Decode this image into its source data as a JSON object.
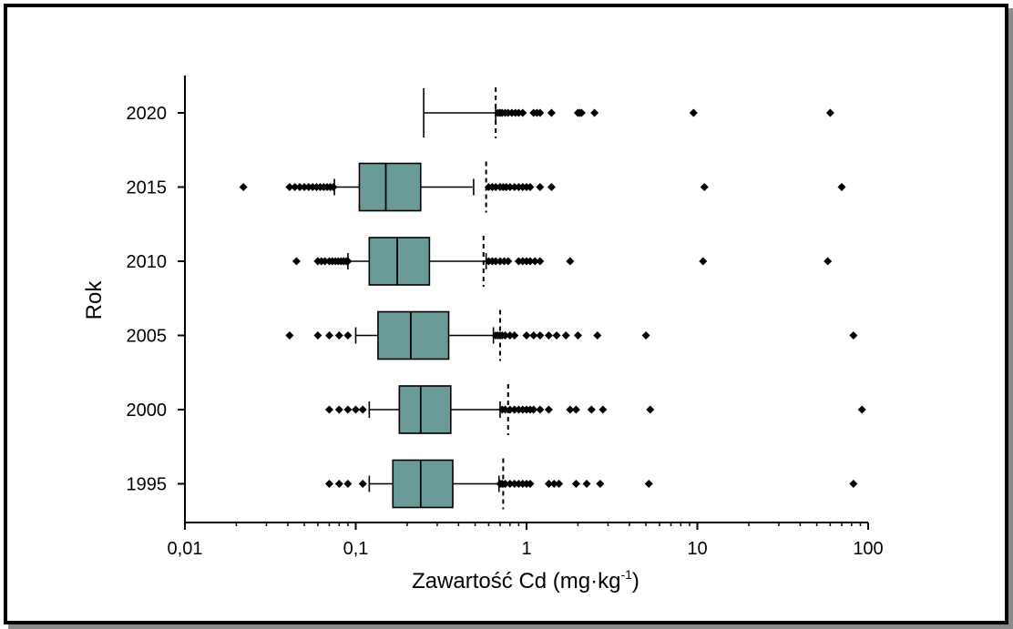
{
  "chart_data": {
    "type": "box",
    "orientation": "horizontal",
    "title": "",
    "xlabel_main": "Zawartość Cd (mg·kg",
    "xlabel_sup": "-1",
    "xlabel_end": ")",
    "ylabel": "Rok",
    "xscale": "log",
    "xlim": [
      0.01,
      100
    ],
    "x_ticks": [
      0.01,
      0.1,
      1,
      10,
      100
    ],
    "x_tick_labels": [
      "0,01",
      "0,1",
      "1",
      "10",
      "100"
    ],
    "grid": false,
    "legend": "none",
    "box_color": "#6a9b99",
    "categories": [
      "2020",
      "2015",
      "2010",
      "2005",
      "2000",
      "1995"
    ],
    "boxes": [
      {
        "year": "2020",
        "whisker_low": 0.25,
        "q1": null,
        "median": null,
        "q3": null,
        "whisker_high": 0.66,
        "p95": 0.66,
        "outliers": [
          0.68,
          0.7,
          0.72,
          0.75,
          0.78,
          0.82,
          0.86,
          0.9,
          0.95,
          1.1,
          1.15,
          1.2,
          1.4,
          2.0,
          2.05,
          2.1,
          2.5,
          9.5,
          60
        ]
      },
      {
        "year": "2015",
        "whisker_low": 0.075,
        "q1": 0.105,
        "median": 0.15,
        "q3": 0.24,
        "whisker_high": 0.49,
        "p95": 0.58,
        "outliers": [
          0.022,
          0.041,
          0.044,
          0.047,
          0.05,
          0.053,
          0.056,
          0.059,
          0.062,
          0.065,
          0.068,
          0.071,
          0.074,
          0.6,
          0.63,
          0.66,
          0.7,
          0.73,
          0.76,
          0.8,
          0.85,
          0.9,
          0.95,
          1.0,
          1.05,
          1.2,
          1.4,
          11,
          70
        ]
      },
      {
        "year": "2010",
        "whisker_low": 0.09,
        "q1": 0.12,
        "median": 0.175,
        "q3": 0.27,
        "whisker_high": 0.58,
        "p95": 0.56,
        "outliers": [
          0.045,
          0.06,
          0.063,
          0.066,
          0.07,
          0.073,
          0.076,
          0.079,
          0.082,
          0.085,
          0.088,
          0.09,
          0.6,
          0.63,
          0.66,
          0.7,
          0.74,
          0.78,
          0.9,
          0.95,
          1.0,
          1.05,
          1.12,
          1.2,
          1.8,
          10.8,
          58
        ]
      },
      {
        "year": "2005",
        "whisker_low": 0.1,
        "q1": 0.135,
        "median": 0.21,
        "q3": 0.35,
        "whisker_high": 0.64,
        "p95": 0.7,
        "outliers": [
          0.041,
          0.06,
          0.07,
          0.08,
          0.09,
          0.66,
          0.68,
          0.7,
          0.72,
          0.75,
          0.8,
          0.85,
          1.0,
          1.1,
          1.2,
          1.35,
          1.5,
          1.7,
          2.0,
          2.6,
          5.0,
          82
        ]
      },
      {
        "year": "2000",
        "whisker_low": 0.12,
        "q1": 0.18,
        "median": 0.24,
        "q3": 0.36,
        "whisker_high": 0.7,
        "p95": 0.78,
        "outliers": [
          0.07,
          0.08,
          0.09,
          0.1,
          0.11,
          0.72,
          0.75,
          0.8,
          0.85,
          0.9,
          0.95,
          1.0,
          1.05,
          1.1,
          1.2,
          1.35,
          1.8,
          1.95,
          2.4,
          2.8,
          5.3,
          92
        ]
      },
      {
        "year": "1995",
        "whisker_low": 0.12,
        "q1": 0.165,
        "median": 0.24,
        "q3": 0.37,
        "whisker_high": 0.69,
        "p95": 0.73,
        "outliers": [
          0.07,
          0.08,
          0.09,
          0.11,
          0.7,
          0.72,
          0.75,
          0.8,
          0.85,
          0.9,
          0.95,
          1.0,
          1.05,
          1.35,
          1.45,
          1.55,
          1.95,
          2.25,
          2.7,
          5.2,
          82
        ]
      }
    ]
  }
}
